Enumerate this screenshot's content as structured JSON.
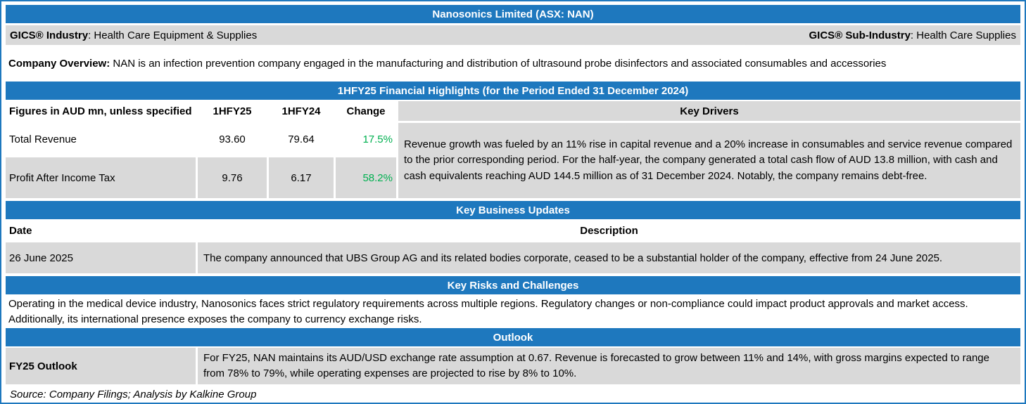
{
  "colors": {
    "accent_blue": "#1e78be",
    "cell_gray": "#d9d9d9",
    "positive_green": "#00b050"
  },
  "title_bar": {
    "title": "Nanosonics Limited  (ASX: NAN)"
  },
  "gics": {
    "industry_label": "GICS® Industry",
    "industry_value": ": Health Care Equipment & Supplies",
    "sub_industry_label": "GICS® Sub-Industry",
    "sub_industry_value": ": Health Care Supplies"
  },
  "overview": {
    "label": "Company Overview:",
    "text": " NAN is an infection prevention company engaged in the manufacturing and distribution of ultrasound probe disinfectors and associated consumables and accessories"
  },
  "financial_highlights": {
    "header": "1HFY25 Financial Highlights  (for the Period Ended 31 December 2024)",
    "columns": {
      "figures": "Figures in AUD mn, unless specified",
      "hfy25": "1HFY25",
      "hfy24": "1HFY24",
      "change": "Change",
      "key_drivers": "Key Drivers"
    },
    "rows": [
      {
        "label": "Total Revenue",
        "hfy25": "93.60",
        "hfy24": "79.64",
        "change": "17.5%"
      },
      {
        "label": "Profit After Income Tax",
        "hfy25": "9.76",
        "hfy24": "6.17",
        "change": "58.2%"
      }
    ],
    "key_drivers_text": "Revenue growth was fueled by an 11% rise in capital revenue and a 20% increase in consumables and service revenue compared to the prior corresponding period. For the half-year, the company generated a total cash flow of AUD 13.8 million, with cash and cash equivalents reaching AUD 144.5 million as of 31 December 2024. Notably, the company remains debt-free."
  },
  "key_business_updates": {
    "header": "Key Business Updates",
    "date_header": "Date",
    "description_header": "Description",
    "rows": [
      {
        "date": "26 June 2025",
        "description": "The company announced that UBS Group AG and its related bodies corporate, ceased to be a substantial holder of the company, effective from 24 June 2025."
      }
    ]
  },
  "key_risks": {
    "header": "Key Risks and Challenges",
    "text": "Operating in the medical device industry, Nanosonics faces strict regulatory requirements across multiple regions. Regulatory changes or non-compliance could impact product approvals and market access. Additionally, its international presence exposes the company to currency exchange risks."
  },
  "outlook": {
    "header": "Outlook",
    "label": "FY25 Outlook",
    "text": "For FY25, NAN maintains its AUD/USD exchange rate assumption at 0.67. Revenue is forecasted to grow between 11% and 14%, with gross margins expected to range from 78% to 79%, while operating expenses are projected to rise by 8% to 10%."
  },
  "source": {
    "text": "Source: Company Filings; Analysis by Kalkine Group"
  }
}
